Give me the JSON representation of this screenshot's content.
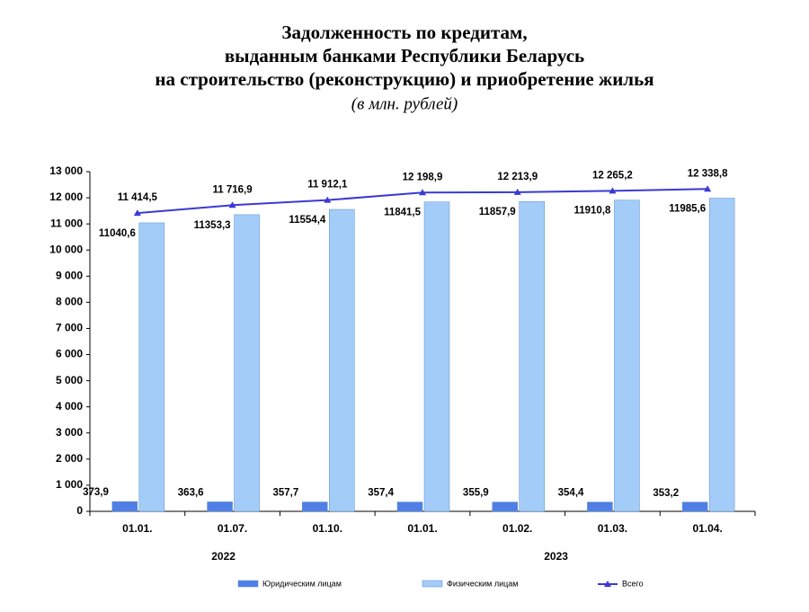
{
  "chart_data": {
    "type": "bar-line",
    "title": [
      "Задолженность по кредитам,",
      "выданным банками Республики Беларусь",
      "на строительство (реконструкцию) и приобретение жилья"
    ],
    "subtitle": "(в млн. рублей)",
    "categories": [
      "01.01.",
      "01.07.",
      "01.10.",
      "01.01.",
      "01.02.",
      "01.03.",
      "01.04."
    ],
    "x_groups": [
      {
        "label": "2022",
        "span": 3
      },
      {
        "label": "2023",
        "span": 4
      }
    ],
    "series": [
      {
        "name": "Юридическим лицам",
        "type": "bar",
        "color": "#4f7fe6",
        "values": [
          373.9,
          363.6,
          357.7,
          357.4,
          355.9,
          354.4,
          353.2
        ],
        "value_labels": [
          "373,9",
          "363,6",
          "357,7",
          "357,4",
          "355,9",
          "354,4",
          "353,2"
        ]
      },
      {
        "name": "Физическим лицам",
        "type": "bar",
        "color": "#a3cdf8",
        "values": [
          11040.6,
          11353.3,
          11554.4,
          11841.5,
          11857.9,
          11910.8,
          11985.6
        ],
        "value_labels": [
          "11040,6",
          "11353,3",
          "11554,4",
          "11841,5",
          "11857,9",
          "11910,8",
          "11985,6"
        ]
      },
      {
        "name": "Всего",
        "type": "line",
        "color": "#3a3ad4",
        "values": [
          11414.5,
          11716.9,
          11912.1,
          12198.9,
          12213.9,
          12265.2,
          12338.8
        ],
        "value_labels": [
          "11 414,5",
          "11 716,9",
          "11 912,1",
          "12 198,9",
          "12 213,9",
          "12 265,2",
          "12 338,8"
        ]
      }
    ],
    "ylim": [
      0,
      13000
    ],
    "yticks": [
      0,
      {
        "value": 1000,
        "label": "1 000"
      },
      {
        "value": 2000,
        "label": "2 000"
      },
      {
        "value": 3000,
        "label": "3 000"
      },
      {
        "value": 4000,
        "label": "4 000"
      },
      {
        "value": 5000,
        "label": "5 000"
      },
      {
        "value": 6000,
        "label": "6 000"
      },
      {
        "value": 7000,
        "label": "7 000"
      },
      {
        "value": 8000,
        "label": "8 000"
      },
      {
        "value": 9000,
        "label": "9 000"
      },
      {
        "value": 10000,
        "label": "10 000"
      },
      {
        "value": 11000,
        "label": "11 000"
      },
      {
        "value": 12000,
        "label": "12 000"
      },
      {
        "value": 13000,
        "label": "13 000"
      }
    ],
    "legend": "bottom"
  }
}
